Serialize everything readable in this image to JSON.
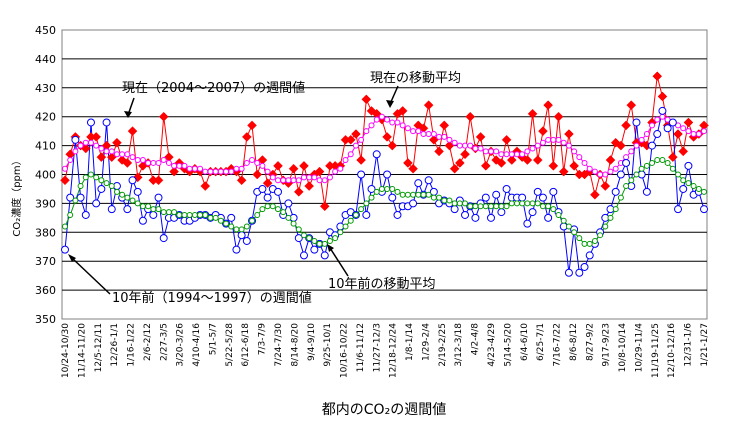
{
  "chart_data": {
    "type": "line",
    "title": "",
    "xlabel": "都内のCO₂の週間値",
    "ylabel": "CO₂濃度（ppm）",
    "ylim": [
      350,
      450
    ],
    "yticks": [
      350,
      360,
      370,
      380,
      390,
      400,
      410,
      420,
      430,
      440,
      450
    ],
    "grid": true,
    "x_tick_labels": [
      "10/24-10/30",
      "11/14-11/20",
      "12/5-12/11",
      "12/26-1/1",
      "1/16-1/22",
      "2/6-2/12",
      "2/27-3/5",
      "3/20-3/26",
      "4/10-4/16",
      "5/1-5/7",
      "5/22-5/28",
      "6/12-6/18",
      "7/3-7/9",
      "7/24-7/30",
      "8/14-8/20",
      "9/4-9/10",
      "9/25-10/1",
      "10/16-10/22",
      "11/6-11/12",
      "11/27-12/3",
      "12/18-12/24",
      "1/8-1/14",
      "1/29-2/4",
      "2/19-2/25",
      "3/12-3/18",
      "4/2-4/8",
      "4/23-4/29",
      "5/14-5/20",
      "6/4-6/10",
      "6/25-7/1",
      "7/16-7/22",
      "8/6-8/12",
      "8/27-9/2",
      "9/17-9/23",
      "10/8-10/14",
      "10/29-11/4",
      "11/19-11/25",
      "12/10-12/16",
      "12/31-1/6",
      "1/21-1/27"
    ],
    "annotations": [
      "現在（2004～2007）の週間値",
      "現在の移動平均",
      "10年前（1994～1997）の週間値",
      "10年前の移動平均"
    ],
    "series": [
      {
        "name": "現在（2004～2007）の週間値",
        "color": "#ff0000",
        "marker": "diamond",
        "values": [
          398,
          407,
          413,
          410,
          409,
          413,
          413,
          406,
          410,
          406,
          411,
          405,
          404,
          415,
          399,
          403,
          404,
          398,
          398,
          420,
          406,
          401,
          404,
          402,
          401,
          402,
          401,
          396,
          401,
          401,
          401,
          401,
          402,
          401,
          398,
          413,
          417,
          400,
          405,
          397,
          400,
          403,
          398,
          397,
          402,
          394,
          403,
          396,
          400,
          401,
          389,
          403,
          403,
          403,
          412,
          412,
          414,
          405,
          426,
          422,
          421,
          419,
          413,
          410,
          421,
          422,
          404,
          402,
          417,
          416,
          424,
          412,
          408,
          417,
          410,
          402,
          404,
          407,
          420,
          409,
          413,
          403,
          408,
          405,
          404,
          412,
          405,
          408,
          406,
          405,
          421,
          405,
          415,
          424,
          403,
          420,
          401,
          414,
          403,
          400,
          400,
          401,
          393,
          400,
          396,
          405,
          411,
          410,
          417,
          424,
          411,
          411,
          410,
          418,
          434,
          427,
          417,
          406,
          414,
          408,
          418,
          413,
          414,
          417
        ]
      },
      {
        "name": "現在の移動平均",
        "color": "#ff00ff",
        "marker": "circle",
        "values": [
          402,
          405,
          408,
          410,
          411,
          411,
          410,
          409,
          408,
          408,
          407,
          407,
          407,
          406,
          405,
          405,
          404,
          404,
          404,
          405,
          404,
          403,
          403,
          403,
          402,
          402,
          402,
          401,
          401,
          401,
          401,
          401,
          401,
          402,
          402,
          404,
          405,
          404,
          403,
          401,
          399,
          398,
          398,
          398,
          398,
          398,
          399,
          399,
          399,
          398,
          398,
          399,
          401,
          402,
          405,
          407,
          410,
          412,
          415,
          417,
          419,
          420,
          419,
          418,
          418,
          417,
          416,
          415,
          415,
          414,
          414,
          414,
          413,
          413,
          412,
          411,
          410,
          410,
          410,
          409,
          409,
          408,
          408,
          408,
          407,
          407,
          407,
          407,
          407,
          408,
          409,
          410,
          411,
          412,
          412,
          412,
          411,
          410,
          408,
          406,
          404,
          402,
          401,
          400,
          400,
          401,
          402,
          404,
          406,
          408,
          410,
          412,
          414,
          417,
          419,
          420,
          419,
          418,
          417,
          416,
          415,
          414,
          414,
          415
        ]
      },
      {
        "name": "10年前（1994～1997）の週間値",
        "color": "#0000ff",
        "marker": "circle",
        "values": [
          374,
          392,
          412,
          392,
          386,
          418,
          390,
          395,
          418,
          388,
          396,
          392,
          388,
          398,
          394,
          384,
          388,
          386,
          392,
          378,
          385,
          385,
          386,
          384,
          384,
          385,
          386,
          386,
          385,
          386,
          385,
          383,
          385,
          374,
          379,
          377,
          384,
          394,
          395,
          392,
          395,
          394,
          386,
          390,
          385,
          378,
          372,
          378,
          374,
          376,
          372,
          380,
          379,
          382,
          386,
          387,
          386,
          400,
          386,
          395,
          407,
          394,
          400,
          392,
          386,
          389,
          389,
          390,
          397,
          393,
          398,
          394,
          390,
          391,
          390,
          388,
          391,
          386,
          389,
          385,
          390,
          392,
          385,
          393,
          387,
          395,
          392,
          392,
          392,
          383,
          387,
          394,
          392,
          385,
          394,
          387,
          382,
          366,
          381,
          366,
          368,
          372,
          376,
          380,
          385,
          388,
          394,
          400,
          404,
          396,
          418,
          400,
          394,
          410,
          414,
          422,
          416,
          418,
          388,
          395,
          403,
          393,
          394,
          388
        ]
      },
      {
        "name": "10年前の移動平均",
        "color": "#009900",
        "marker": "circle",
        "values": [
          382,
          386,
          391,
          396,
          399,
          400,
          399,
          398,
          397,
          396,
          394,
          393,
          392,
          391,
          390,
          389,
          389,
          388,
          388,
          387,
          387,
          387,
          386,
          386,
          386,
          386,
          386,
          386,
          385,
          385,
          384,
          383,
          382,
          381,
          381,
          382,
          384,
          386,
          388,
          389,
          389,
          388,
          387,
          385,
          383,
          381,
          379,
          378,
          377,
          376,
          376,
          377,
          378,
          380,
          382,
          384,
          386,
          388,
          390,
          392,
          394,
          395,
          395,
          395,
          394,
          393,
          393,
          393,
          393,
          393,
          393,
          392,
          392,
          391,
          391,
          390,
          390,
          390,
          389,
          389,
          389,
          389,
          389,
          389,
          389,
          389,
          390,
          390,
          390,
          390,
          390,
          390,
          389,
          389,
          388,
          386,
          384,
          382,
          380,
          378,
          376,
          376,
          377,
          379,
          382,
          385,
          388,
          392,
          396,
          398,
          400,
          402,
          403,
          404,
          405,
          405,
          404,
          402,
          400,
          398,
          397,
          396,
          395,
          394
        ]
      }
    ]
  }
}
